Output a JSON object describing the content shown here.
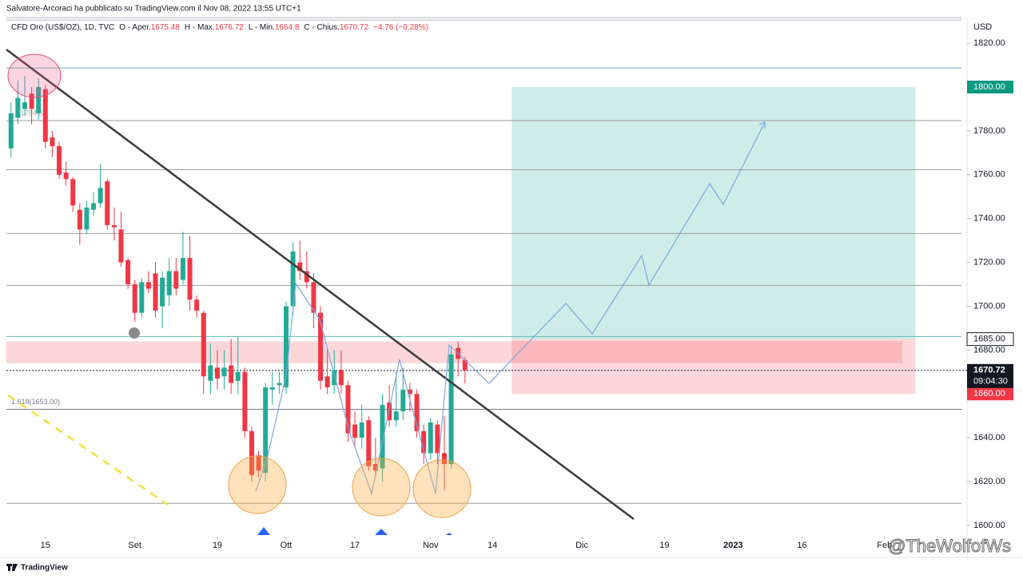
{
  "header": {
    "publisher": "Salvatore-Arcoraci ha pubblicato su TradingView.com il Nov 08, 2022 13:55 UTC+1",
    "symbol": "CFD Oro (US$/OZ), 1D, TVC",
    "open_label": "O - Aper.",
    "high_label": "H - Max.",
    "low_label": "L - Min.",
    "close_label": "C - Chius.",
    "change": "−4.76 (−0.28%)"
  },
  "chart_data": {
    "type": "candlestick",
    "currency": "USD",
    "up_color": "#22ab94",
    "down_color": "#f23645",
    "ylim": [
      1595.6,
      1830.6
    ],
    "xlim": [
      -1.6,
      139
    ],
    "yticks": [
      {
        "value": 1600,
        "label": "1600.00"
      },
      {
        "value": 1620,
        "label": "1620.00"
      },
      {
        "value": 1640,
        "label": "1640.00"
      },
      {
        "value": 1660,
        "label": "1660.00"
      },
      {
        "value": 1680,
        "label": "1680.00"
      },
      {
        "value": 1700,
        "label": "1700.00"
      },
      {
        "value": 1720,
        "label": "1720.00"
      },
      {
        "value": 1740,
        "label": "1740.00"
      },
      {
        "value": 1760,
        "label": "1760.00"
      },
      {
        "value": 1780,
        "label": "1780.00"
      },
      {
        "value": 1800,
        "label": "1800.00"
      },
      {
        "value": 1820,
        "label": "1820.00"
      }
    ],
    "xticks": [
      {
        "value": 5,
        "label": "15"
      },
      {
        "value": 18,
        "label": "Set"
      },
      {
        "value": 30,
        "label": "19"
      },
      {
        "value": 40,
        "label": "Ott"
      },
      {
        "value": 50,
        "label": "17"
      },
      {
        "value": 61,
        "label": "Nov"
      },
      {
        "value": 70,
        "label": "14"
      },
      {
        "value": 83,
        "label": "Dic"
      },
      {
        "value": 95,
        "label": "19"
      },
      {
        "value": 105,
        "label": "2023"
      },
      {
        "value": 115,
        "label": "16"
      },
      {
        "value": 127,
        "label": "Feb"
      }
    ],
    "ohlc": [
      {
        "o": 1772,
        "h": 1793,
        "l": 1768,
        "c": 1788
      },
      {
        "o": 1786,
        "h": 1803,
        "l": 1783,
        "c": 1795
      },
      {
        "o": 1790,
        "h": 1805,
        "l": 1787,
        "c": 1793
      },
      {
        "o": 1797,
        "h": 1800,
        "l": 1783,
        "c": 1790
      },
      {
        "o": 1788,
        "h": 1804,
        "l": 1785,
        "c": 1800
      },
      {
        "o": 1799,
        "h": 1801,
        "l": 1772,
        "c": 1775
      },
      {
        "o": 1777,
        "h": 1780,
        "l": 1768,
        "c": 1773
      },
      {
        "o": 1773,
        "h": 1775,
        "l": 1758,
        "c": 1760
      },
      {
        "o": 1761,
        "h": 1766,
        "l": 1755,
        "c": 1758
      },
      {
        "o": 1758,
        "h": 1759,
        "l": 1743,
        "c": 1746
      },
      {
        "o": 1744,
        "h": 1747,
        "l": 1728,
        "c": 1735
      },
      {
        "o": 1735,
        "h": 1748,
        "l": 1733,
        "c": 1745
      },
      {
        "o": 1744,
        "h": 1752,
        "l": 1741,
        "c": 1747
      },
      {
        "o": 1747,
        "h": 1765,
        "l": 1745,
        "c": 1754
      },
      {
        "o": 1757,
        "h": 1758,
        "l": 1735,
        "c": 1737
      },
      {
        "o": 1737,
        "h": 1745,
        "l": 1730,
        "c": 1736
      },
      {
        "o": 1735,
        "h": 1743,
        "l": 1718,
        "c": 1720
      },
      {
        "o": 1721,
        "h": 1722,
        "l": 1708,
        "c": 1710
      },
      {
        "o": 1710,
        "h": 1712,
        "l": 1693,
        "c": 1697
      },
      {
        "o": 1697,
        "h": 1713,
        "l": 1695,
        "c": 1711
      },
      {
        "o": 1711,
        "h": 1716,
        "l": 1706,
        "c": 1708
      },
      {
        "o": 1715,
        "h": 1720,
        "l": 1695,
        "c": 1698
      },
      {
        "o": 1700,
        "h": 1716,
        "l": 1690,
        "c": 1713
      },
      {
        "o": 1705,
        "h": 1722,
        "l": 1700,
        "c": 1716
      },
      {
        "o": 1716,
        "h": 1722,
        "l": 1705,
        "c": 1708
      },
      {
        "o": 1712,
        "h": 1734,
        "l": 1710,
        "c": 1722
      },
      {
        "o": 1722,
        "h": 1732,
        "l": 1698,
        "c": 1703
      },
      {
        "o": 1703,
        "h": 1705,
        "l": 1695,
        "c": 1698
      },
      {
        "o": 1697,
        "h": 1698,
        "l": 1660,
        "c": 1668
      },
      {
        "o": 1666,
        "h": 1683,
        "l": 1660,
        "c": 1673
      },
      {
        "o": 1672,
        "h": 1680,
        "l": 1662,
        "c": 1667
      },
      {
        "o": 1668,
        "h": 1680,
        "l": 1662,
        "c": 1672
      },
      {
        "o": 1673,
        "h": 1685,
        "l": 1660,
        "c": 1665
      },
      {
        "o": 1666,
        "h": 1686,
        "l": 1660,
        "c": 1670
      },
      {
        "o": 1670,
        "h": 1672,
        "l": 1640,
        "c": 1643
      },
      {
        "o": 1643,
        "h": 1645,
        "l": 1620,
        "c": 1623
      },
      {
        "o": 1632,
        "h": 1634,
        "l": 1622,
        "c": 1625
      },
      {
        "o": 1624,
        "h": 1665,
        "l": 1620,
        "c": 1663
      },
      {
        "o": 1662,
        "h": 1670,
        "l": 1655,
        "c": 1663
      },
      {
        "o": 1664,
        "h": 1670,
        "l": 1660,
        "c": 1665
      },
      {
        "o": 1663,
        "h": 1702,
        "l": 1660,
        "c": 1700
      },
      {
        "o": 1700,
        "h": 1729,
        "l": 1696,
        "c": 1725
      },
      {
        "o": 1720,
        "h": 1730,
        "l": 1712,
        "c": 1716
      },
      {
        "o": 1716,
        "h": 1725,
        "l": 1708,
        "c": 1711
      },
      {
        "o": 1711,
        "h": 1715,
        "l": 1690,
        "c": 1697
      },
      {
        "o": 1697,
        "h": 1700,
        "l": 1662,
        "c": 1666
      },
      {
        "o": 1668,
        "h": 1681,
        "l": 1660,
        "c": 1663
      },
      {
        "o": 1664,
        "h": 1680,
        "l": 1660,
        "c": 1671
      },
      {
        "o": 1671,
        "h": 1680,
        "l": 1660,
        "c": 1664
      },
      {
        "o": 1664,
        "h": 1666,
        "l": 1638,
        "c": 1642
      },
      {
        "o": 1646,
        "h": 1652,
        "l": 1636,
        "c": 1640
      },
      {
        "o": 1640,
        "h": 1655,
        "l": 1635,
        "c": 1647
      },
      {
        "o": 1648,
        "h": 1650,
        "l": 1625,
        "c": 1627
      },
      {
        "o": 1628,
        "h": 1640,
        "l": 1622,
        "c": 1625
      },
      {
        "o": 1626,
        "h": 1660,
        "l": 1620,
        "c": 1655
      },
      {
        "o": 1656,
        "h": 1664,
        "l": 1645,
        "c": 1648
      },
      {
        "o": 1648,
        "h": 1670,
        "l": 1645,
        "c": 1652
      },
      {
        "o": 1652,
        "h": 1672,
        "l": 1648,
        "c": 1662
      },
      {
        "o": 1662,
        "h": 1665,
        "l": 1652,
        "c": 1660
      },
      {
        "o": 1660,
        "h": 1662,
        "l": 1640,
        "c": 1643
      },
      {
        "o": 1643,
        "h": 1646,
        "l": 1628,
        "c": 1633
      },
      {
        "o": 1633,
        "h": 1649,
        "l": 1630,
        "c": 1647
      },
      {
        "o": 1646,
        "h": 1648,
        "l": 1628,
        "c": 1633
      },
      {
        "o": 1633,
        "h": 1650,
        "l": 1616,
        "c": 1628
      },
      {
        "o": 1628,
        "h": 1682,
        "l": 1626,
        "c": 1678
      },
      {
        "o": 1681,
        "h": 1684,
        "l": 1668,
        "c": 1676
      },
      {
        "o": 1675.48,
        "h": 1676.72,
        "l": 1664.8,
        "c": 1670.72
      }
    ],
    "levels": [
      {
        "value": 1808.7,
        "color": "#5fb8b0"
      },
      {
        "value": 1784.7,
        "color": "#9e9e9e"
      },
      {
        "value": 1762.3,
        "color": "#9e9e9e"
      },
      {
        "value": 1733.2,
        "color": "#9e9e9e"
      },
      {
        "value": 1709.5,
        "color": "#9e9e9e"
      },
      {
        "value": 1686.2,
        "color": "#5fb8b0"
      },
      {
        "value": 1610.1,
        "color": "#9e9e9e"
      }
    ],
    "fib": {
      "value": 1653,
      "label": "1.618(1653.00)"
    },
    "ghost_label": "1784.5",
    "zones": [
      {
        "from": 72.8,
        "to": 131.5,
        "top": 1800,
        "bottom": 1685,
        "color": "rgba(34,171,148,0.22)"
      },
      {
        "from": 72.8,
        "to": 131.5,
        "top": 1685,
        "bottom": 1660,
        "color": "rgba(242,54,69,0.2)"
      },
      {
        "from": -0.7,
        "to": 129.6,
        "top": 1684,
        "bottom": 1674,
        "color": "rgba(242,54,69,0.2)"
      }
    ],
    "tags": [
      {
        "value": 1800,
        "label": "1800.00",
        "color": "#089981"
      },
      {
        "value": 1685,
        "label": "1685.00",
        "color": "#ffffff"
      },
      {
        "value": 1660,
        "label": "1660.00",
        "color": "#f23645"
      }
    ],
    "last": {
      "value": 1670.72,
      "label": "1670.72",
      "countdown": "09:04:30"
    }
  },
  "footer": {
    "brand": "TradingView",
    "watermark": "@TheWolfofWs"
  }
}
